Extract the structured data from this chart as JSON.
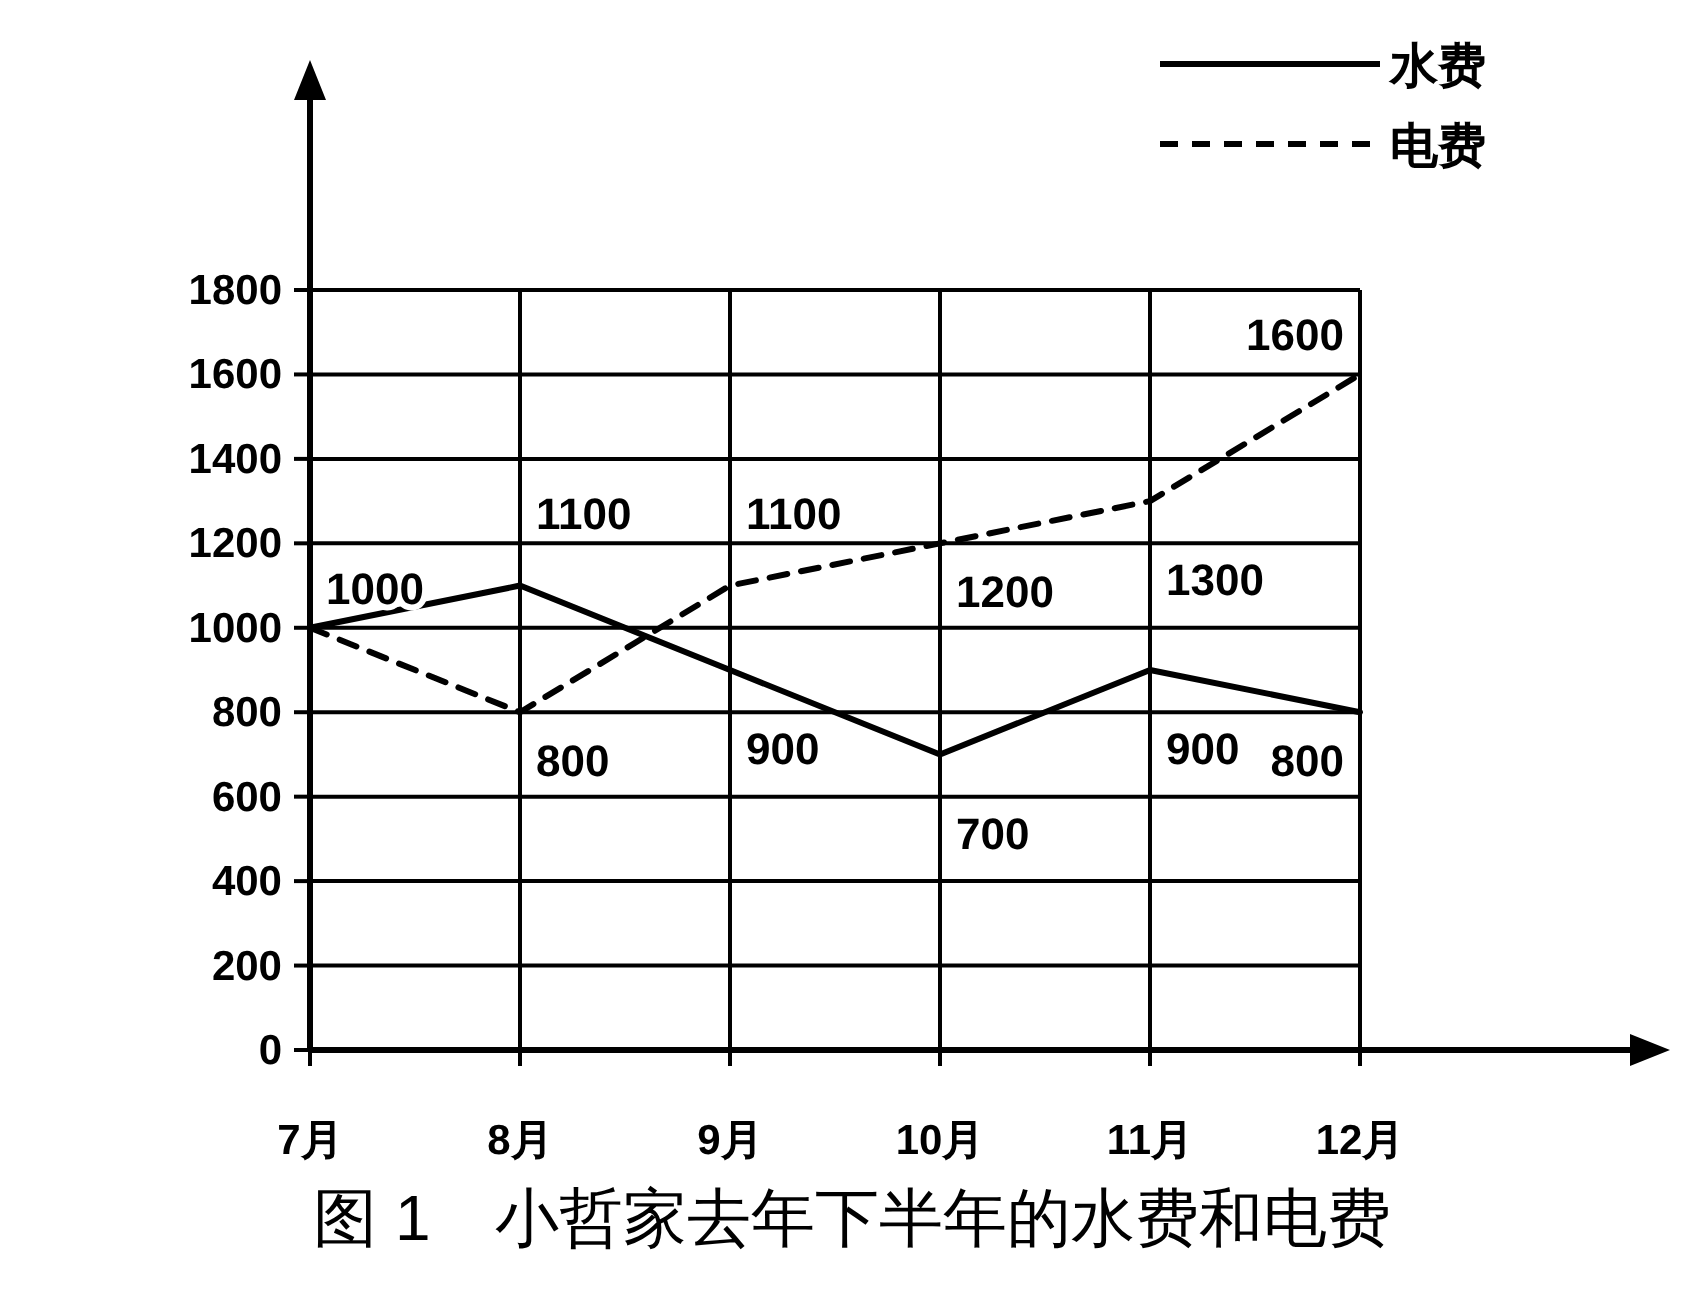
{
  "chart_data": {
    "type": "line",
    "title": "图 1　小哲家去年下半年的水费和电费",
    "categories": [
      "7月",
      "8月",
      "9月",
      "10月",
      "11月",
      "12月"
    ],
    "series": [
      {
        "name": "水费",
        "color": "#000000",
        "line_style": "solid",
        "values": [
          1000,
          1100,
          900,
          700,
          900,
          800
        ],
        "value_labels": [
          "1000",
          "1100",
          "900",
          "700",
          "900",
          "800"
        ]
      },
      {
        "name": "电费",
        "color": "#000000",
        "line_style": "dashed",
        "values": [
          1000,
          800,
          1100,
          1200,
          1300,
          1600
        ],
        "value_labels": [
          null,
          "800",
          "1100",
          "1200",
          "1300",
          "1600"
        ]
      }
    ],
    "ylim": [
      0,
      1800
    ],
    "yticks": [
      0,
      200,
      400,
      600,
      800,
      1000,
      1200,
      1400,
      1600,
      1800
    ],
    "grid": true,
    "legend": "top right",
    "marker": "none"
  }
}
